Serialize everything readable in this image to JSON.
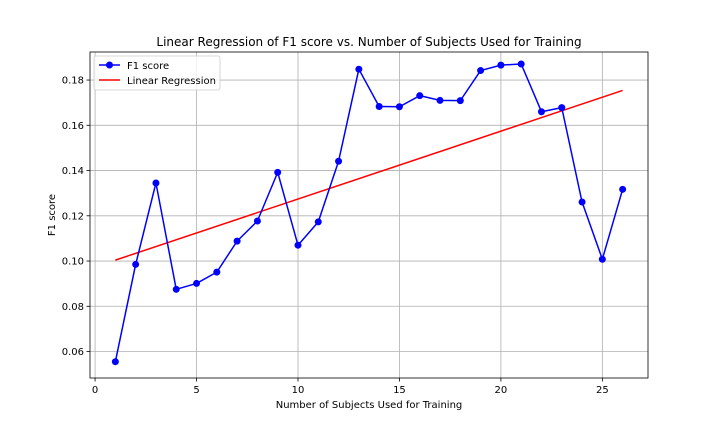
{
  "chart_data": {
    "type": "line",
    "title": "Linear Regression of F1 score vs. Number of Subjects Used for Training",
    "xlabel": "Number of Subjects Used for Training",
    "ylabel": "F1 score",
    "xlim": [
      -0.25,
      27.25
    ],
    "ylim": [
      0.0483,
      0.1924
    ],
    "xticks": [
      0,
      5,
      10,
      15,
      20,
      25
    ],
    "xtick_labels": [
      "0",
      "5",
      "10",
      "15",
      "20",
      "25"
    ],
    "yticks": [
      0.06,
      0.08,
      0.1,
      0.12,
      0.14,
      0.16,
      0.18
    ],
    "ytick_labels": [
      "0.06",
      "0.08",
      "0.10",
      "0.12",
      "0.14",
      "0.16",
      "0.18"
    ],
    "grid": true,
    "legend_position": "top-left",
    "series": [
      {
        "name": "F1 score",
        "color": "#0000ff",
        "marker": "circle",
        "x": [
          1,
          2,
          3,
          4,
          5,
          6,
          7,
          8,
          9,
          10,
          11,
          12,
          13,
          14,
          15,
          16,
          17,
          18,
          19,
          20,
          21,
          22,
          23,
          24,
          25,
          26
        ],
        "values": [
          0.0555,
          0.0985,
          0.1345,
          0.0875,
          0.0901,
          0.0951,
          0.1088,
          0.1177,
          0.1392,
          0.107,
          0.1173,
          0.1441,
          0.1848,
          0.1683,
          0.1682,
          0.1731,
          0.171,
          0.1709,
          0.1842,
          0.1866,
          0.1871,
          0.166,
          0.1678,
          0.1261,
          0.1008,
          0.1317
        ]
      },
      {
        "name": "Linear Regression",
        "color": "#ff0000",
        "marker": "none",
        "x": [
          1,
          26
        ],
        "values": [
          0.1004,
          0.1754
        ]
      }
    ]
  }
}
